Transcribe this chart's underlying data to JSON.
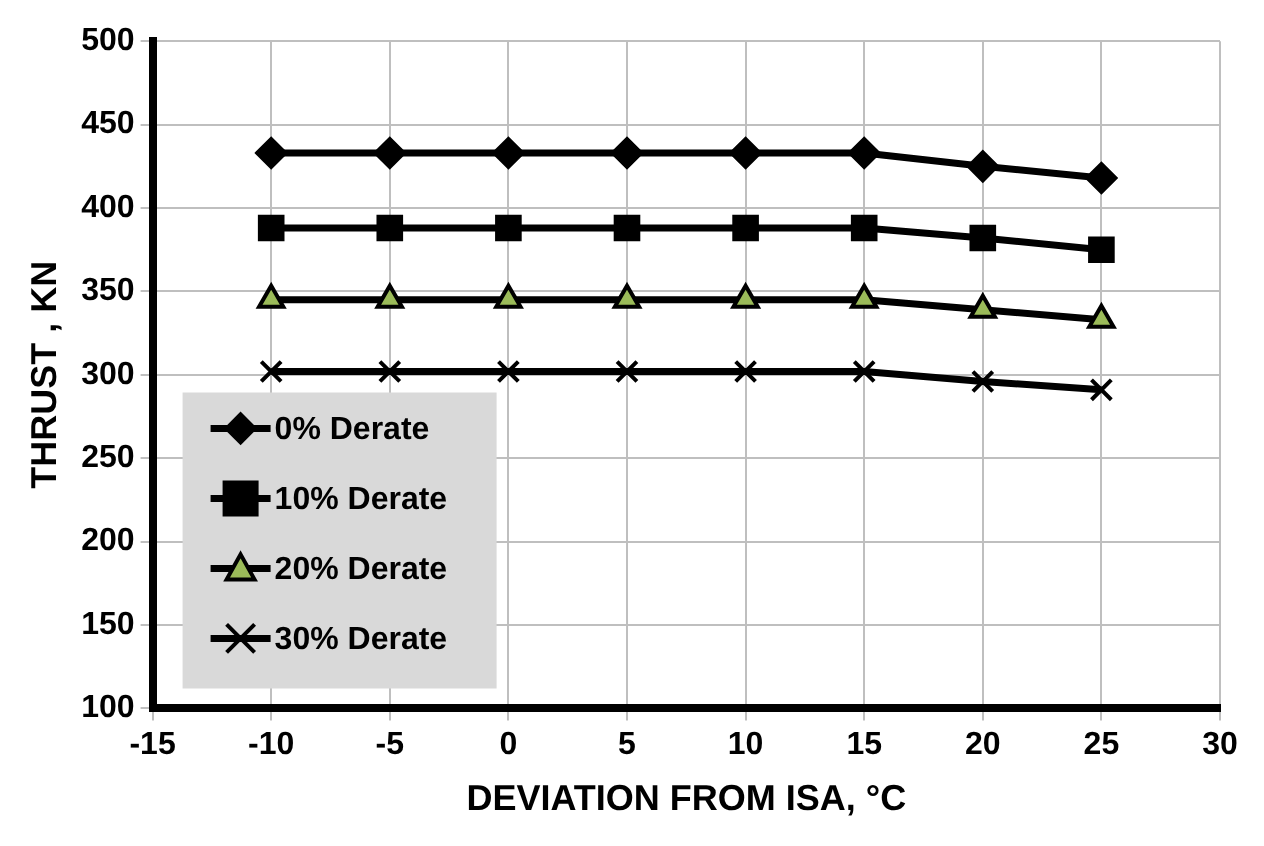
{
  "chart_data": {
    "type": "line",
    "xlabel": "DEVIATION FROM ISA, °C",
    "ylabel": "THRUST , KN",
    "x": [
      -10,
      -5,
      0,
      5,
      10,
      15,
      20,
      25
    ],
    "series": [
      {
        "name": "0% Derate",
        "color": "#000000",
        "marker": "diamond",
        "values": [
          433,
          433,
          433,
          433,
          433,
          433,
          425,
          418
        ]
      },
      {
        "name": "10% Derate",
        "color": "#000000",
        "marker": "square",
        "values": [
          388,
          388,
          388,
          388,
          388,
          388,
          382,
          375
        ]
      },
      {
        "name": "20% Derate",
        "color": "#000000",
        "marker": "triangle",
        "values": [
          345,
          345,
          345,
          345,
          345,
          345,
          339,
          333
        ]
      },
      {
        "name": "30% Derate",
        "color": "#000000",
        "marker": "cross",
        "values": [
          302,
          302,
          302,
          302,
          302,
          302,
          296,
          291
        ]
      }
    ],
    "xlim": [
      -15,
      30
    ],
    "xticks": [
      -15,
      -10,
      -5,
      0,
      5,
      10,
      15,
      20,
      25,
      30
    ],
    "ylim": [
      100,
      500
    ],
    "yticks": [
      100,
      150,
      200,
      250,
      300,
      350,
      400,
      450,
      500
    ],
    "grid": true,
    "legend": "bottom left",
    "line_style": "solid"
  }
}
